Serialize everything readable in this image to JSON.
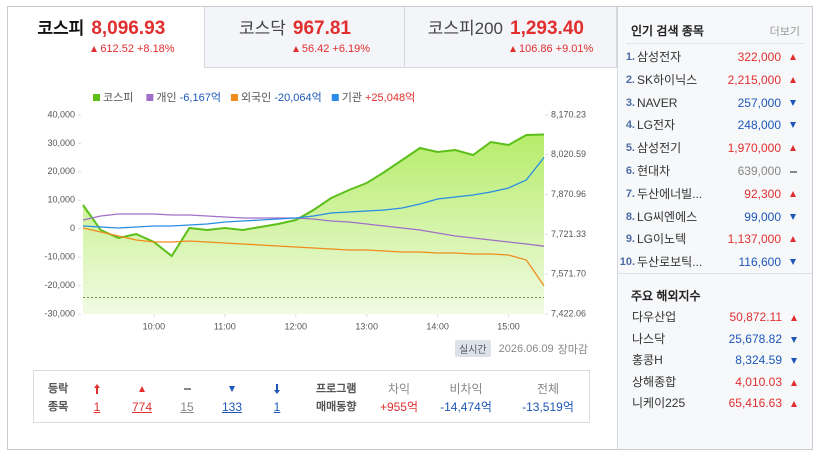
{
  "tabs": [
    {
      "name": "코스피",
      "value": "8,096.93",
      "change": "612.52",
      "rate": "+8.18%",
      "dir": "up",
      "selected": true
    },
    {
      "name": "코스닥",
      "value": "967.81",
      "change": "56.42",
      "rate": "+6.19%",
      "dir": "up",
      "selected": false
    },
    {
      "name": "코스피200",
      "value": "1,293.40",
      "change": "106.86",
      "rate": "+9.01%",
      "dir": "up",
      "selected": false
    }
  ],
  "chart_data": {
    "type": "line",
    "x": [
      540,
      555,
      570,
      585,
      600,
      615,
      630,
      645,
      660,
      675,
      690,
      705,
      720,
      735,
      750,
      765,
      780,
      795,
      810,
      825,
      840,
      855,
      870,
      885,
      900,
      915,
      930
    ],
    "xlim": [
      540,
      930
    ],
    "xticks": [
      {
        "value": 600,
        "label": "10:00"
      },
      {
        "value": 660,
        "label": "11:00"
      },
      {
        "value": 720,
        "label": "12:00"
      },
      {
        "value": 780,
        "label": "13:00"
      },
      {
        "value": 840,
        "label": "14:00"
      },
      {
        "value": 900,
        "label": "15:00"
      }
    ],
    "ylim": [
      -30000,
      40000
    ],
    "yticks": [
      {
        "value": 40000,
        "label": "40,000"
      },
      {
        "value": 30000,
        "label": "30,000"
      },
      {
        "value": 20000,
        "label": "20,000"
      },
      {
        "value": 10000,
        "label": "10,000"
      },
      0,
      {
        "value": -10000,
        "label": "-10,000"
      },
      {
        "value": -20000,
        "label": "-20,000"
      },
      {
        "value": -30000,
        "label": "-30,000"
      }
    ],
    "y2lim": [
      7422.06,
      8170.23
    ],
    "y2ticks": [
      {
        "value": 8170.23,
        "label": "8,170.23"
      },
      {
        "value": 8020.59,
        "label": "8,020.59"
      },
      {
        "value": 7870.96,
        "label": "7,870.96"
      },
      {
        "value": 7721.33,
        "label": "7,721.33"
      },
      {
        "value": 7571.7,
        "label": "7,571.70"
      },
      {
        "value": 7422.06,
        "label": "7,422.06"
      }
    ],
    "baseline": 7484.41,
    "series": [
      {
        "name": "코스피",
        "color": "#5cbf1a",
        "axis": "y2",
        "area": true,
        "values": [
          7831.9,
          7737.9,
          7707.8,
          7722.9,
          7692.8,
          7640.1,
          7745.4,
          7737.9,
          7745.4,
          7737.9,
          7749.2,
          7760.5,
          7775.5,
          7813.1,
          7858.2,
          7888.3,
          7914.6,
          7956.0,
          8001.1,
          8046.2,
          8031.2,
          8038.7,
          8019.9,
          8068.8,
          8057.5,
          8095.1,
          8096.9
        ]
      },
      {
        "name": "개인",
        "value_label": "-6,167억",
        "label_color": "#1c57b8",
        "color": "#a070c8",
        "axis": "y",
        "values": [
          3060,
          4470,
          5170,
          5170,
          5170,
          4820,
          4820,
          4470,
          4110,
          3760,
          3760,
          3760,
          3760,
          3410,
          2710,
          2360,
          1650,
          950,
          250,
          -460,
          -1510,
          -2570,
          -3270,
          -3970,
          -4680,
          -5380,
          -6167
        ]
      },
      {
        "name": "외국인",
        "value_label": "-20,064억",
        "label_color": "#1c57b8",
        "color": "#f08c1e",
        "axis": "y",
        "values": [
          250,
          -1160,
          -2570,
          -3970,
          -4680,
          -4680,
          -4330,
          -4680,
          -5030,
          -5380,
          -5730,
          -6090,
          -6440,
          -6790,
          -7140,
          -7490,
          -7490,
          -7840,
          -8190,
          -8190,
          -8550,
          -8550,
          -8900,
          -8900,
          -9250,
          -11010,
          -20064
        ]
      },
      {
        "name": "기관",
        "value_label": "+25,048억",
        "label_color": "#e12f2f",
        "color": "#2a8ce6",
        "axis": "y",
        "values": [
          950,
          600,
          250,
          600,
          950,
          950,
          1300,
          1650,
          2360,
          2710,
          3060,
          3410,
          3760,
          4470,
          5520,
          5870,
          6230,
          6580,
          7280,
          8690,
          10450,
          11150,
          11850,
          12910,
          14310,
          17130,
          25048
        ]
      }
    ]
  },
  "chart_footer": {
    "badge": "실시간",
    "date": "2026.06.09",
    "status": "장마감"
  },
  "breadth": {
    "label": [
      "등락",
      "종목"
    ],
    "items": [
      {
        "kind": "upper-limit",
        "dir": "up",
        "count": 1
      },
      {
        "kind": "up",
        "dir": "up",
        "count": 774
      },
      {
        "kind": "flat",
        "dir": "flat",
        "count": 15
      },
      {
        "kind": "down",
        "dir": "down",
        "count": 133
      },
      {
        "kind": "lower-limit",
        "dir": "down",
        "count": 1
      }
    ]
  },
  "program": {
    "label": [
      "프로그램",
      "매매동향"
    ],
    "columns": [
      {
        "head": "차익",
        "value": "+955억",
        "dir": "up"
      },
      {
        "head": "비차익",
        "value": "-14,474억",
        "dir": "down"
      },
      {
        "head": "전체",
        "value": "-13,519억",
        "dir": "down"
      }
    ]
  },
  "popular": {
    "title": "인기 검색 종목",
    "more": "더보기",
    "rows": [
      {
        "rank": "1.",
        "name": "삼성전자",
        "price": "322,000",
        "dir": "up"
      },
      {
        "rank": "2.",
        "name": "SK하이닉스",
        "price": "2,215,000",
        "dir": "up"
      },
      {
        "rank": "3.",
        "name": "NAVER",
        "price": "257,000",
        "dir": "down"
      },
      {
        "rank": "4.",
        "name": "LG전자",
        "price": "248,000",
        "dir": "down"
      },
      {
        "rank": "5.",
        "name": "삼성전기",
        "price": "1,970,000",
        "dir": "up"
      },
      {
        "rank": "6.",
        "name": "현대차",
        "price": "639,000",
        "dir": "flat"
      },
      {
        "rank": "7.",
        "name": "두산에너빌...",
        "price": "92,300",
        "dir": "up"
      },
      {
        "rank": "8.",
        "name": "LG씨엔에스",
        "price": "99,000",
        "dir": "down"
      },
      {
        "rank": "9.",
        "name": "LG이노텍",
        "price": "1,137,000",
        "dir": "up"
      },
      {
        "rank": "10.",
        "name": "두산로보틱...",
        "price": "116,600",
        "dir": "down"
      }
    ]
  },
  "world": {
    "title": "주요 해외지수",
    "rows": [
      {
        "name": "다우산업",
        "value": "50,872.11",
        "dir": "up"
      },
      {
        "name": "나스닥",
        "value": "25,678.82",
        "dir": "down"
      },
      {
        "name": "홍콩H",
        "value": "8,324.59",
        "dir": "down"
      },
      {
        "name": "상해종합",
        "value": "4,010.03",
        "dir": "up"
      },
      {
        "name": "니케이225",
        "value": "65,416.63",
        "dir": "up"
      }
    ]
  }
}
